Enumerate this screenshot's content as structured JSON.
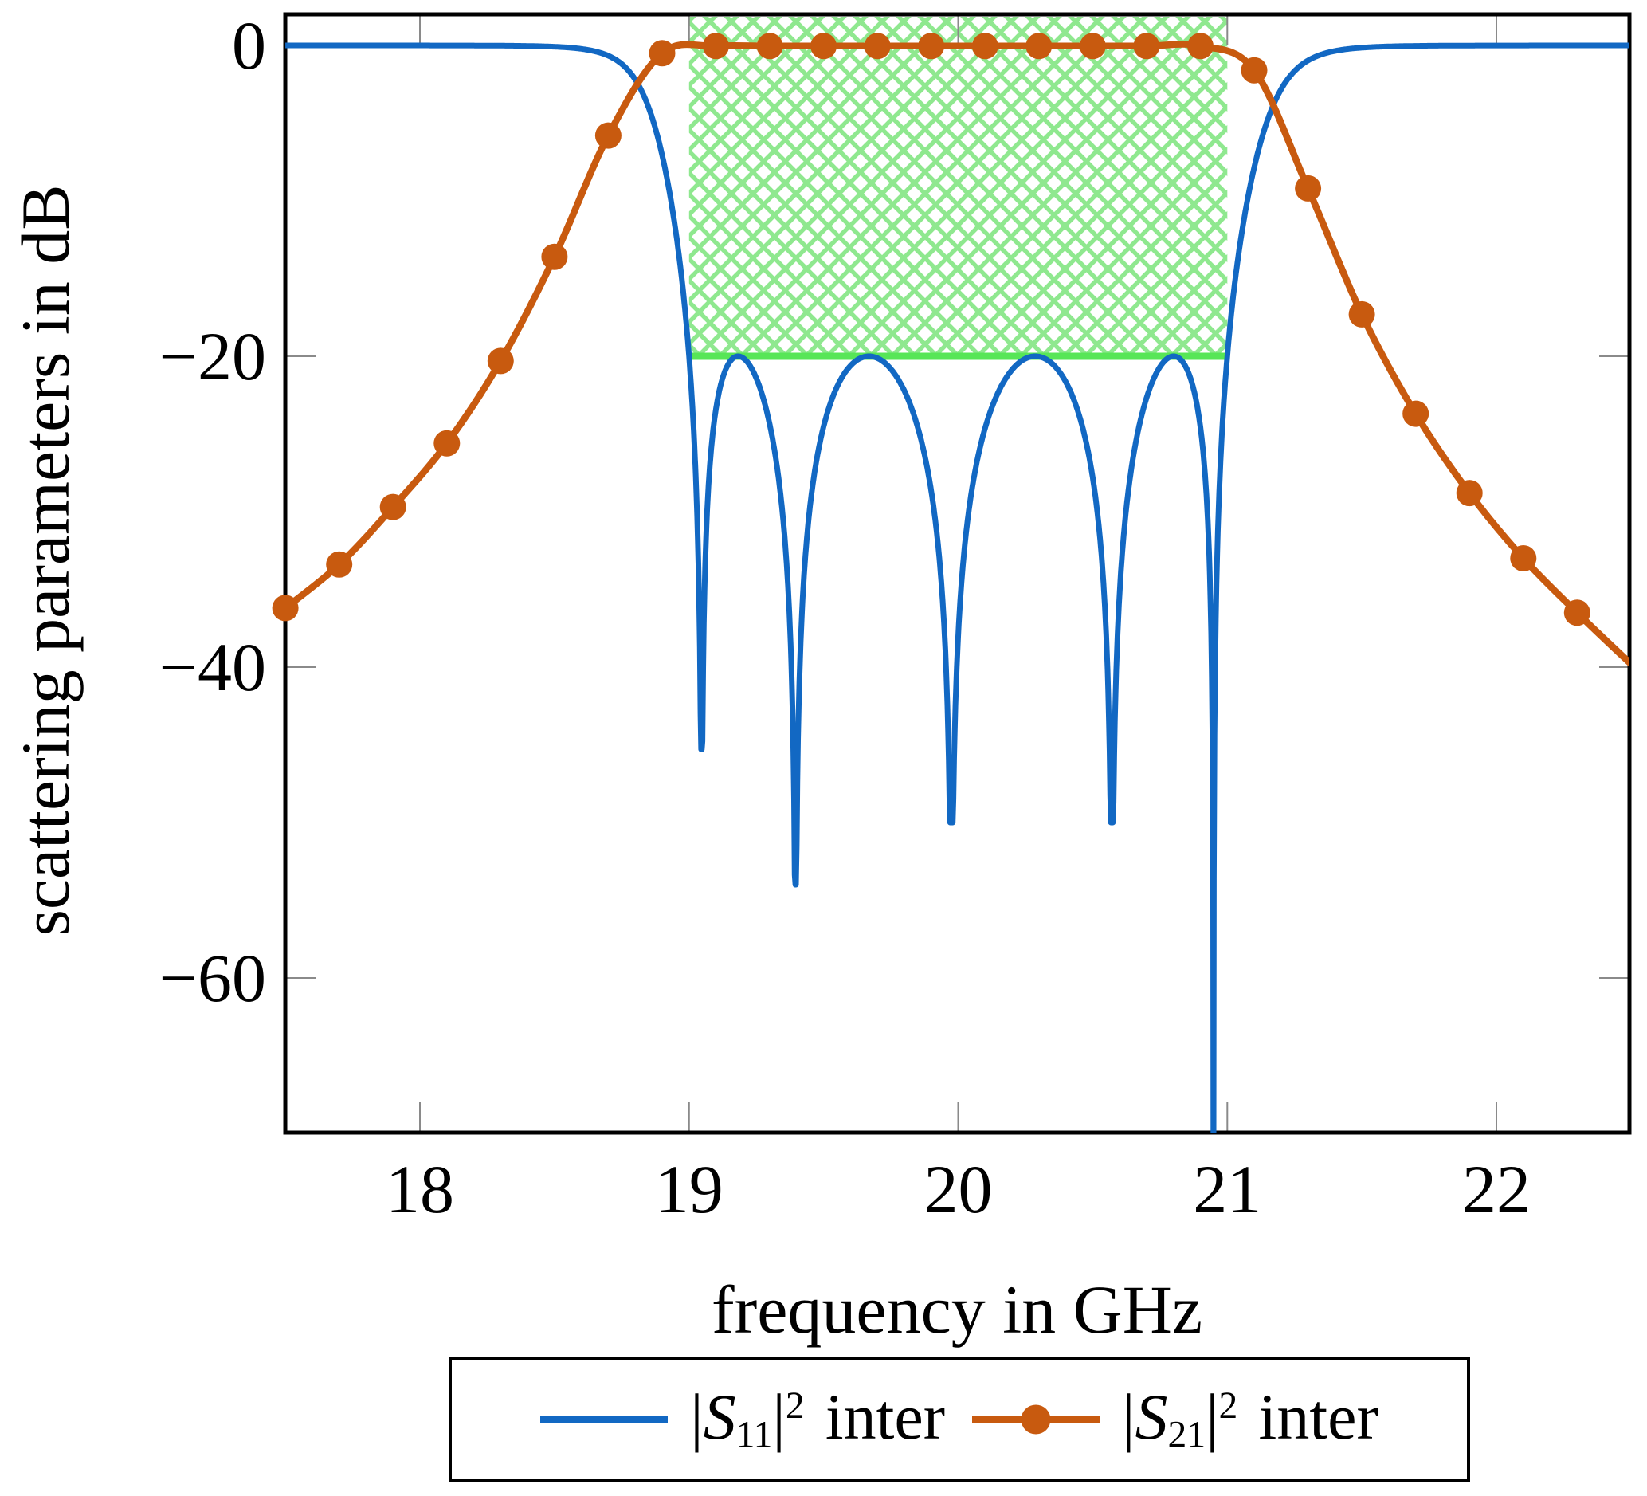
{
  "figure": {
    "background": "#ffffff",
    "frame_color": "#000000",
    "tick_color": "#8a8a8a",
    "x_axis": {
      "label": "frequency in GHz",
      "range": [
        17.5,
        22.5
      ],
      "ticks": [
        18,
        19,
        20,
        21,
        22
      ],
      "tick_labels": [
        "18",
        "19",
        "20",
        "21",
        "22"
      ]
    },
    "y_axis": {
      "label": "scattering parameters in dB",
      "range": [
        -70,
        2
      ],
      "ticks": [
        0,
        -20,
        -40,
        -60
      ],
      "tick_labels": [
        "0",
        "−20",
        "−40",
        "−60"
      ]
    }
  },
  "chart_data": {
    "type": "line",
    "title": "",
    "xlabel": "frequency in GHz",
    "ylabel": "scattering parameters in dB",
    "xlim": [
      17.5,
      22.5
    ],
    "ylim": [
      -70,
      2
    ],
    "grid": false,
    "legend_position": "below plot",
    "spec_mask": {
      "description": "crosshatched specification region of the passband",
      "f_start_GHz": 19.0,
      "f_stop_GHz": 21.0,
      "top_dB": 2,
      "bottom_dB": -20,
      "hatch_color": "#8fe88f",
      "edge_color": "#57e657"
    },
    "series": [
      {
        "name": "|S11|^2 inter",
        "color": "#1268c3",
        "line_style": "solid",
        "model": {
          "type": "chebyshev_bandpass_reflection",
          "order": 5,
          "passband_GHz": [
            19.0,
            21.0
          ],
          "ripple_level_dB": -20,
          "stopband_level_dB": 0,
          "ripple_peaks_dB": -20,
          "nulls": [
            {
              "f_GHz": 19.0232,
              "depth_dB": -45.3
            },
            {
              "f_GHz": 19.3959,
              "depth_dB": -54.0
            },
            {
              "f_GHz": 19.975,
              "depth_dB": -50.0
            },
            {
              "f_GHz": 20.5714,
              "depth_dB": -50.0
            },
            {
              "f_GHz": 20.9487,
              "depth_dB": -75.0
            }
          ]
        }
      },
      {
        "name": "|S21|^2 inter",
        "color": "#c85a0f",
        "line_style": "solid",
        "marker": "filled-circle",
        "marker_every_GHz": 0.2,
        "points_f_GHz": [
          17.5,
          17.7,
          17.9,
          18.1,
          18.3,
          18.5,
          18.7,
          18.9,
          19.1,
          19.3,
          19.5,
          19.7,
          19.9,
          20.1,
          20.3,
          20.5,
          20.7,
          20.9,
          21.1,
          21.3,
          21.5,
          21.7,
          21.9,
          22.1,
          22.3,
          22.5
        ],
        "points_dB": [
          -36.2,
          -33.4,
          -29.7,
          -25.6,
          -20.3,
          -13.6,
          -5.8,
          -0.5,
          -0.04,
          -0.04,
          -0.04,
          -0.04,
          -0.04,
          -0.04,
          -0.04,
          -0.04,
          -0.04,
          -0.04,
          -1.6,
          -9.2,
          -17.3,
          -23.7,
          -28.8,
          -33.0,
          -36.5,
          -39.8
        ]
      }
    ]
  },
  "legend": {
    "items": [
      {
        "pipe1": "|",
        "symbol": "S",
        "subscript": "11",
        "pipe2": "|",
        "exponent": "2",
        "suffix": "inter",
        "color": "#1268c3",
        "marker": false
      },
      {
        "pipe1": "|",
        "symbol": "S",
        "subscript": "21",
        "pipe2": "|",
        "exponent": "2",
        "suffix": "inter",
        "color": "#c85a0f",
        "marker": true
      }
    ]
  }
}
